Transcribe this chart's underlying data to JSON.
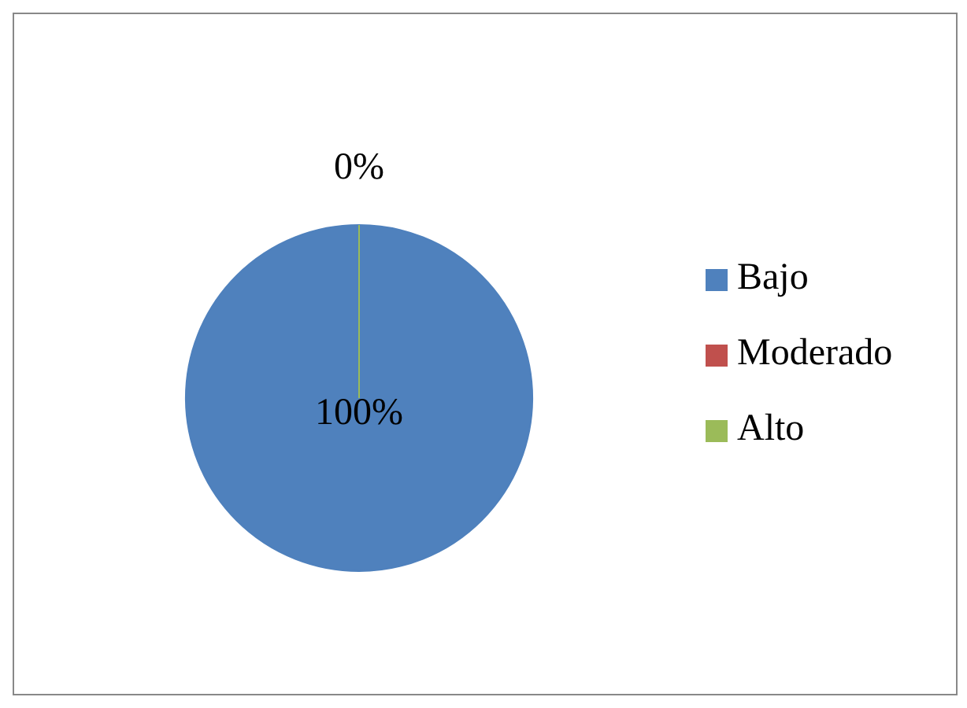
{
  "chart_data": {
    "type": "pie",
    "categories": [
      "Bajo",
      "Moderado",
      "Alto"
    ],
    "values": [
      100,
      0,
      0
    ],
    "colors": [
      "#4f81bd",
      "#c0504d",
      "#9bbb59"
    ],
    "value_labels": [
      "100%",
      "0%",
      null
    ],
    "legend": "right"
  }
}
